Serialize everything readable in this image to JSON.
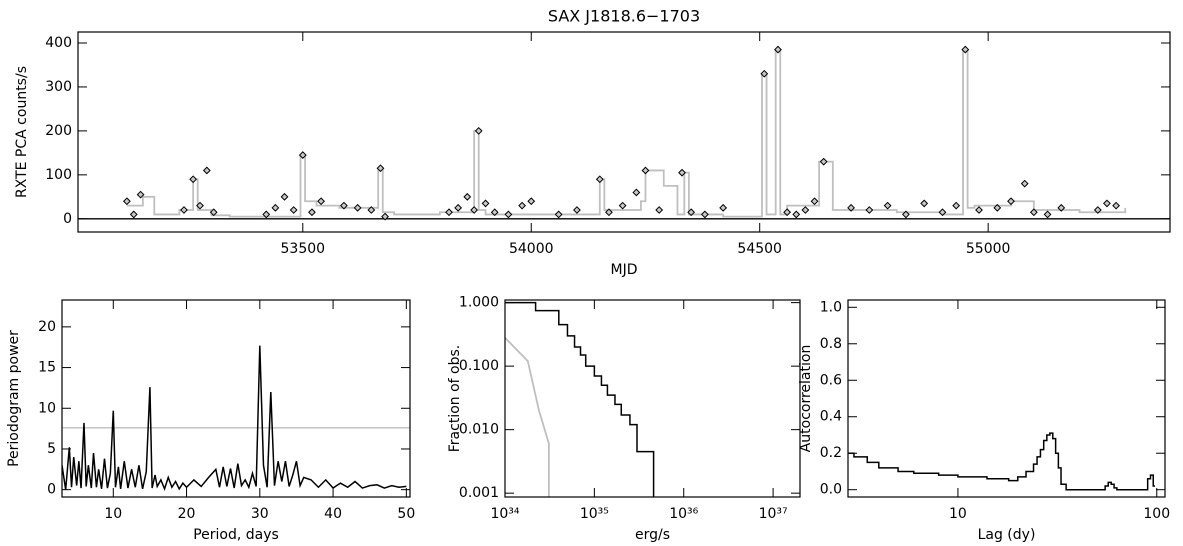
{
  "chart_data": [
    {
      "type": "scatter",
      "title": "SAX J1818.6−1703",
      "xlabel": "MJD",
      "ylabel": "RXTE PCA counts/s",
      "xlim": [
        53008,
        55398
      ],
      "ylim": [
        -30,
        425
      ],
      "xticks": [
        53500,
        54000,
        54500,
        55000
      ],
      "yticks": [
        0,
        100,
        200,
        300,
        400
      ],
      "hline": {
        "value": 0,
        "color": "#000000"
      },
      "series": [
        {
          "drawstyle": "steps-post",
          "color": "#bfbfbf",
          "x": [
            53115,
            53150,
            53175,
            53230,
            53260,
            53270,
            53300,
            53340,
            53420,
            53495,
            53505,
            53530,
            53580,
            53665,
            53675,
            53700,
            53800,
            53875,
            53885,
            53900,
            53960,
            54050,
            54140,
            54150,
            54160,
            54240,
            54250,
            54290,
            54320,
            54335,
            54345,
            54420,
            54505,
            54515,
            54535,
            54545,
            54560,
            54630,
            54660,
            54680,
            54800,
            54900,
            54945,
            54955,
            54970,
            55050,
            55100,
            55200,
            55300
          ],
          "values": [
            30,
            50,
            10,
            20,
            90,
            20,
            8,
            5,
            5,
            145,
            40,
            30,
            25,
            115,
            15,
            10,
            15,
            200,
            20,
            10,
            10,
            10,
            10,
            90,
            20,
            40,
            110,
            75,
            10,
            105,
            10,
            5,
            330,
            10,
            385,
            10,
            30,
            130,
            20,
            20,
            15,
            10,
            385,
            25,
            30,
            40,
            20,
            15,
            25
          ]
        },
        {
          "drawstyle": "markers",
          "color": "#000000",
          "x": [
            53115,
            53130,
            53145,
            53240,
            53260,
            53275,
            53290,
            53305,
            53420,
            53440,
            53460,
            53480,
            53500,
            53520,
            53540,
            53590,
            53620,
            53650,
            53670,
            53680,
            53820,
            53840,
            53860,
            53875,
            53885,
            53900,
            53920,
            53950,
            53980,
            54000,
            54060,
            54100,
            54150,
            54170,
            54200,
            54230,
            54250,
            54280,
            54330,
            54350,
            54380,
            54420,
            54510,
            54540,
            54560,
            54580,
            54600,
            54620,
            54640,
            54700,
            54740,
            54780,
            54820,
            54860,
            54900,
            54930,
            54950,
            54980,
            55020,
            55050,
            55080,
            55100,
            55130,
            55160,
            55240,
            55260,
            55280
          ],
          "values": [
            40,
            10,
            55,
            20,
            90,
            30,
            110,
            15,
            10,
            25,
            50,
            20,
            145,
            15,
            40,
            30,
            25,
            20,
            115,
            5,
            15,
            25,
            50,
            20,
            200,
            35,
            15,
            10,
            30,
            40,
            10,
            20,
            90,
            15,
            30,
            60,
            110,
            20,
            105,
            15,
            10,
            25,
            330,
            385,
            15,
            10,
            20,
            40,
            130,
            25,
            20,
            30,
            10,
            35,
            15,
            30,
            385,
            20,
            25,
            40,
            80,
            15,
            10,
            25,
            20,
            35,
            30
          ]
        }
      ]
    },
    {
      "type": "line",
      "xlabel": "Period, days",
      "ylabel": "Periodogram power",
      "xlim": [
        3,
        50.5
      ],
      "ylim": [
        -0.9,
        23.3
      ],
      "xticks": [
        10,
        20,
        30,
        40,
        50
      ],
      "yticks": [
        0,
        5,
        10,
        15,
        20
      ],
      "hline": {
        "value": 7.6,
        "color": "#bfbfbf"
      },
      "series": [
        {
          "drawstyle": "line",
          "color": "#000000",
          "x": [
            3,
            3.5,
            4,
            4.3,
            4.6,
            5,
            5.3,
            5.6,
            6,
            6.3,
            6.6,
            7,
            7.3,
            7.7,
            8,
            8.4,
            8.8,
            9.2,
            9.6,
            10,
            10.3,
            10.7,
            11,
            11.5,
            12,
            12.5,
            13,
            13.5,
            14,
            14.5,
            15,
            15.3,
            15.7,
            16,
            16.5,
            17,
            17.5,
            18,
            18.5,
            19,
            19.5,
            20,
            21,
            22,
            23,
            24,
            24.5,
            25,
            25.5,
            26,
            26.5,
            27,
            27.5,
            28,
            28.5,
            29,
            29.5,
            30,
            30.5,
            31,
            31.5,
            32,
            32.5,
            33,
            33.5,
            34,
            34.5,
            35,
            35.5,
            36,
            37,
            38,
            39,
            40,
            41,
            42,
            43,
            44,
            45,
            46,
            47,
            48,
            49,
            50
          ],
          "values": [
            3,
            0,
            5.2,
            0.3,
            4,
            0.5,
            3.5,
            0.2,
            8.2,
            0.4,
            3,
            0.2,
            4.5,
            0.3,
            2.5,
            0.1,
            3.8,
            0.2,
            2,
            9.7,
            0.3,
            2.8,
            0.1,
            3.5,
            0.2,
            2.5,
            0.3,
            3,
            0.1,
            2.2,
            12.6,
            0.2,
            1.8,
            0.4,
            1.2,
            0.1,
            1.5,
            0.3,
            1,
            0.1,
            0.8,
            0.3,
            1.2,
            0.4,
            1.5,
            2.5,
            0.3,
            2.8,
            0.4,
            2.6,
            0.2,
            3.2,
            0.5,
            1.2,
            0.3,
            2,
            0.4,
            17.7,
            3,
            0.3,
            12,
            0.5,
            3.5,
            1,
            3.5,
            0.4,
            1.8,
            3.5,
            0.5,
            1.5,
            1.2,
            0.3,
            1.2,
            0.2,
            0.8,
            0.3,
            1,
            0.2,
            0.5,
            0.6,
            0.2,
            0.5,
            0.3,
            0.4
          ]
        }
      ]
    },
    {
      "type": "line",
      "xlabel": "erg/s",
      "ylabel": "Fraction of obs.",
      "xlog": true,
      "ylog": true,
      "xlim": [
        1e+34,
        2e+37
      ],
      "ylim": [
        0.00087,
        1.1
      ],
      "xticks": [
        {
          "value": 1e+34,
          "label": "10³⁴"
        },
        {
          "value": 1e+35,
          "label": "10³⁵"
        },
        {
          "value": 1e+36,
          "label": "10³⁶"
        },
        {
          "value": 1e+37,
          "label": "10³⁷"
        }
      ],
      "yticks": [
        {
          "value": 0.001,
          "label": "0.001"
        },
        {
          "value": 0.01,
          "label": "0.010"
        },
        {
          "value": 0.1,
          "label": "0.100"
        },
        {
          "value": 1,
          "label": "1.000"
        }
      ],
      "series": [
        {
          "drawstyle": "steps-pre",
          "drop_to_axis": true,
          "color": "#000000",
          "x": [
            2.2e+34,
            4e+34,
            5e+34,
            6e+34,
            7e+34,
            8e+34,
            1e+35,
            1.2e+35,
            1.4e+35,
            1.7e+35,
            2e+35,
            2.5e+35,
            3e+35,
            4.6e+35
          ],
          "values": [
            1,
            0.75,
            0.45,
            0.3,
            0.2,
            0.15,
            0.1,
            0.07,
            0.05,
            0.035,
            0.025,
            0.017,
            0.012,
            0.0045
          ]
        },
        {
          "drawstyle": "line",
          "drop_to_axis": true,
          "color": "#bfbfbf",
          "x": [
            1e+34,
            1.8e+34,
            2.4e+34,
            3.1e+34
          ],
          "values": [
            0.28,
            0.12,
            0.02,
            0.006
          ]
        }
      ]
    },
    {
      "type": "line",
      "xlabel": "Lag (dy)",
      "ylabel": "Autocorrelation",
      "xlog": true,
      "xlim": [
        2.8,
        110
      ],
      "ylim": [
        -0.04,
        1.04
      ],
      "xticks": [
        10,
        100
      ],
      "yticks": [
        {
          "value": 0,
          "label": "0.0"
        },
        0.2,
        0.4,
        0.6,
        0.8,
        {
          "value": 1,
          "label": "1.0"
        }
      ],
      "series": [
        {
          "drawstyle": "steps-pre",
          "color": "#000000",
          "x": [
            3,
            3.5,
            4,
            5,
            6,
            8,
            10,
            14,
            18,
            20,
            22,
            24,
            25,
            26,
            27,
            28,
            29,
            30,
            31,
            32,
            33,
            35,
            55,
            57,
            59,
            61,
            63,
            90,
            93,
            96,
            98
          ],
          "values": [
            0.2,
            0.18,
            0.15,
            0.12,
            0.1,
            0.09,
            0.08,
            0.07,
            0.06,
            0.05,
            0.07,
            0.1,
            0.14,
            0.18,
            0.22,
            0.27,
            0.3,
            0.31,
            0.28,
            0.2,
            0.12,
            0.03,
            0,
            0.02,
            0.04,
            0.03,
            0.01,
            0,
            0.06,
            0.08,
            0.02
          ]
        }
      ]
    }
  ]
}
